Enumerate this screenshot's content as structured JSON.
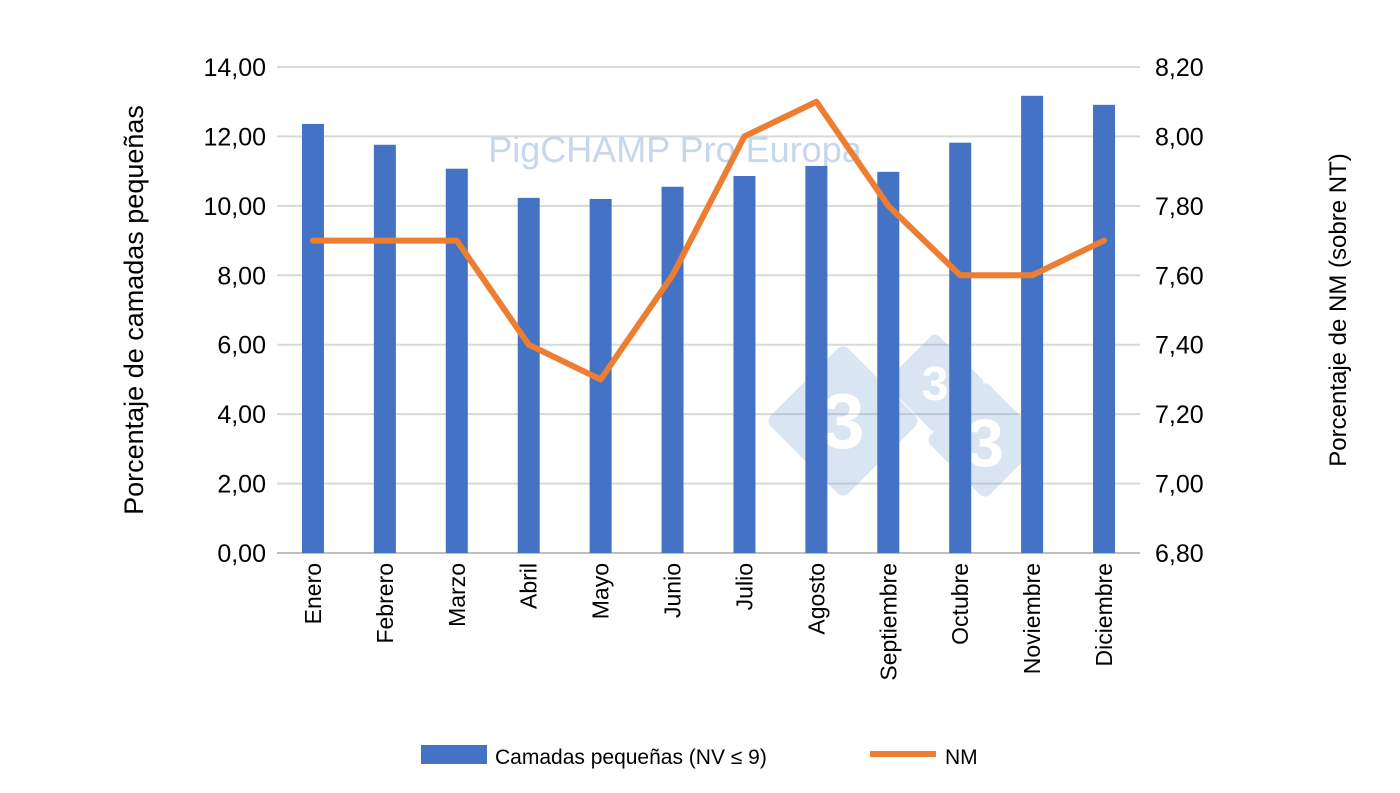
{
  "chart_data": {
    "type": "bar+line",
    "categories": [
      "Enero",
      "Febrero",
      "Marzo",
      "Abril",
      "Mayo",
      "Junio",
      "Julio",
      "Agosto",
      "Septiembre",
      "Octubre",
      "Noviembre",
      "Diciembre"
    ],
    "series": [
      {
        "name": "Camadas pequeñas (NV ≤ 9)",
        "type": "bar",
        "axis": "left",
        "color": "#4472C4",
        "values": [
          12.36,
          11.76,
          11.07,
          10.23,
          10.2,
          10.55,
          10.86,
          11.15,
          10.98,
          11.82,
          13.17,
          12.91
        ]
      },
      {
        "name": "NM",
        "type": "line",
        "axis": "right",
        "color": "#ED7D31",
        "values": [
          7.7,
          7.7,
          7.7,
          7.4,
          7.3,
          7.6,
          8.0,
          8.1,
          7.8,
          7.6,
          7.6,
          7.7
        ]
      }
    ],
    "ylabel": "Porcentaje de camadas pequeñas",
    "y2label": "Porcentaje de NM (sobre NT)",
    "ylim": [
      0,
      14
    ],
    "y2lim": [
      6.8,
      8.2
    ],
    "yticks": [
      "0,00",
      "2,00",
      "4,00",
      "6,00",
      "8,00",
      "10,00",
      "12,00",
      "14,00"
    ],
    "y2ticks": [
      "6,80",
      "7,00",
      "7,20",
      "7,40",
      "7,60",
      "7,80",
      "8,00",
      "8,20"
    ],
    "grid": true,
    "legend": "bottom",
    "watermark": "PigCHAMP Pro Europa",
    "logo_text": "333"
  }
}
